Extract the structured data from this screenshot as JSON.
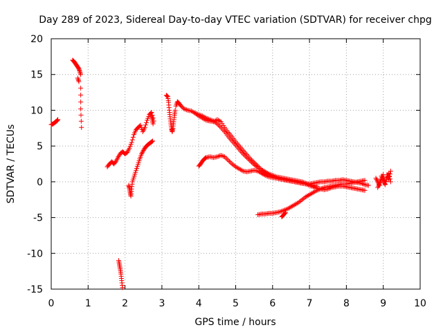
{
  "chart_data": {
    "type": "scatter",
    "title": "Day 289 of 2023, Sidereal Day-to-day VTEC variation (SDTVAR) for receiver chpg",
    "xlabel": "GPS time / hours",
    "ylabel": "SDTVAR / TECUs",
    "xlim": [
      0,
      10
    ],
    "ylim": [
      -15,
      20
    ],
    "x_ticks": [
      0,
      1,
      2,
      3,
      4,
      5,
      6,
      7,
      8,
      9,
      10
    ],
    "y_ticks": [
      -15,
      -10,
      -5,
      0,
      5,
      10,
      15,
      20
    ],
    "x_tick_labels": [
      "0",
      "1",
      "2",
      "3",
      "4",
      "5",
      "6",
      "7",
      "8",
      "9",
      "10"
    ],
    "y_tick_labels": [
      "-15",
      "-10",
      "-5",
      "0",
      "5",
      "10",
      "15",
      "20"
    ],
    "grid": true,
    "marker": "+",
    "color": "#ff0000",
    "segments": [
      {
        "x": [
          0.0,
          0.05,
          0.1,
          0.15,
          0.18
        ],
        "y": [
          8.0,
          8.1,
          8.3,
          8.5,
          8.7
        ]
      },
      {
        "x": [
          0.58,
          0.62,
          0.66,
          0.7,
          0.74,
          0.77,
          0.8
        ],
        "y": [
          17.0,
          16.8,
          16.5,
          16.2,
          15.9,
          15.5,
          15.0
        ]
      },
      {
        "x": [
          0.72,
          0.75
        ],
        "y": [
          14.5,
          14.0
        ]
      },
      {
        "x": [
          0.8,
          0.8,
          0.82
        ],
        "y": [
          13.1,
          10.2,
          7.6
        ]
      },
      {
        "x": [
          1.52,
          1.58,
          1.64,
          1.7,
          1.76,
          1.82,
          1.88,
          1.94,
          2.0,
          2.06,
          2.12,
          2.18,
          2.24,
          2.3,
          2.36,
          2.42,
          2.48,
          2.54,
          2.6,
          2.66,
          2.72,
          2.78
        ],
        "y": [
          2.1,
          2.5,
          2.8,
          2.5,
          2.9,
          3.5,
          4.0,
          4.2,
          3.9,
          4.1,
          4.7,
          5.5,
          6.6,
          7.3,
          7.6,
          7.9,
          7.0,
          7.6,
          8.6,
          9.4,
          9.7,
          8.5
        ]
      },
      {
        "x": [
          2.72,
          2.74,
          2.76
        ],
        "y": [
          9.2,
          8.7,
          8.1
        ]
      },
      {
        "x": [
          2.1,
          2.12,
          2.14,
          2.16,
          2.18,
          2.2,
          2.25,
          2.3,
          2.35,
          2.4,
          2.45,
          2.5,
          2.55,
          2.6,
          2.65,
          2.7,
          2.75
        ],
        "y": [
          -0.5,
          -0.9,
          -1.5,
          -2.0,
          -1.0,
          0.0,
          0.8,
          1.6,
          2.4,
          3.2,
          3.9,
          4.4,
          4.8,
          5.1,
          5.3,
          5.5,
          5.7
        ]
      },
      {
        "x": [
          1.83,
          1.85,
          1.87,
          1.89,
          1.91,
          1.93
        ],
        "y": [
          -11.0,
          -11.6,
          -12.2,
          -12.9,
          -13.8,
          -14.8
        ]
      },
      {
        "x": [
          3.12,
          3.16,
          3.18,
          3.2,
          3.22,
          3.24,
          3.26,
          3.28,
          3.3,
          3.32,
          3.34,
          3.36
        ],
        "y": [
          12.1,
          11.9,
          11.1,
          10.0,
          9.1,
          8.2,
          7.4,
          7.0,
          7.5,
          8.4,
          9.3,
          10.0
        ]
      },
      {
        "x": [
          3.38,
          3.42,
          3.46,
          3.52,
          3.6,
          3.7,
          3.8,
          3.9,
          4.0,
          4.1,
          4.2,
          4.3,
          4.4,
          4.5,
          4.6,
          4.7,
          4.8,
          4.9,
          5.0,
          5.1,
          5.2,
          5.3,
          5.4,
          5.5,
          5.6,
          5.7,
          5.8,
          5.9,
          6.0,
          6.1,
          6.2,
          6.3,
          6.4,
          6.5,
          6.6,
          6.7,
          6.8,
          6.9,
          7.0,
          7.1,
          7.2
        ],
        "y": [
          10.6,
          11.2,
          11.0,
          10.6,
          10.2,
          10.0,
          9.9,
          9.6,
          9.2,
          8.9,
          8.6,
          8.5,
          8.4,
          8.7,
          8.4,
          7.6,
          6.9,
          6.3,
          5.6,
          5.0,
          4.4,
          3.8,
          3.2,
          2.7,
          2.2,
          1.7,
          1.4,
          1.1,
          0.9,
          0.7,
          0.6,
          0.5,
          0.4,
          0.3,
          0.2,
          0.1,
          0.0,
          -0.2,
          -0.4,
          -0.5,
          -0.6
        ]
      },
      {
        "x": [
          3.9,
          4.0,
          4.1,
          4.2,
          4.3,
          4.4,
          4.5,
          4.6,
          4.7,
          4.8,
          4.9,
          5.0,
          5.1,
          5.2,
          5.3,
          5.4,
          5.5,
          5.6,
          5.7,
          5.8,
          5.9,
          6.0,
          6.1,
          6.2,
          6.3,
          6.4,
          6.5,
          6.6,
          6.7,
          6.8,
          6.9,
          7.0,
          7.1,
          7.2,
          7.3,
          7.4,
          7.5,
          7.6,
          7.7,
          7.8,
          7.9,
          8.0,
          8.1,
          8.2,
          8.3,
          8.4,
          8.5,
          8.6
        ],
        "y": [
          9.6,
          9.4,
          9.2,
          8.9,
          8.7,
          8.5,
          8.1,
          7.6,
          7.0,
          6.3,
          5.7,
          5.1,
          4.5,
          3.9,
          3.4,
          2.9,
          2.4,
          2.0,
          1.6,
          1.3,
          1.0,
          0.8,
          0.6,
          0.4,
          0.3,
          0.2,
          0.1,
          0.0,
          -0.1,
          -0.2,
          -0.3,
          -0.3,
          -0.2,
          -0.1,
          0.0,
          0.0,
          0.1,
          0.1,
          0.2,
          0.2,
          0.3,
          0.2,
          0.1,
          0.0,
          -0.1,
          -0.2,
          -0.4,
          -0.5
        ]
      },
      {
        "x": [
          4.0,
          4.05,
          4.1,
          4.15,
          4.2,
          4.3,
          4.4,
          4.5,
          4.6,
          4.7,
          4.8,
          4.9,
          5.0,
          5.1,
          5.2,
          5.3,
          5.4,
          5.5,
          5.6,
          5.7,
          5.8,
          5.9,
          6.0,
          6.1,
          6.2,
          6.3,
          6.4,
          6.5,
          6.6,
          6.7,
          6.8,
          6.9,
          7.0,
          7.1,
          7.2,
          7.3,
          7.4,
          7.5,
          7.6,
          7.7,
          7.8,
          7.9,
          8.0,
          8.1,
          8.2,
          8.3,
          8.4,
          8.5
        ],
        "y": [
          2.2,
          2.5,
          2.9,
          3.2,
          3.4,
          3.5,
          3.4,
          3.5,
          3.7,
          3.5,
          3.0,
          2.5,
          2.1,
          1.8,
          1.5,
          1.4,
          1.5,
          1.6,
          1.5,
          1.2,
          0.9,
          0.7,
          0.6,
          0.5,
          0.4,
          0.3,
          0.2,
          0.1,
          0.0,
          -0.1,
          -0.2,
          -0.3,
          -0.5,
          -0.7,
          -0.9,
          -1.0,
          -1.1,
          -1.0,
          -0.8,
          -0.7,
          -0.6,
          -0.6,
          -0.7,
          -0.8,
          -0.9,
          -1.0,
          -1.1,
          -1.2
        ]
      },
      {
        "x": [
          5.6,
          5.7,
          5.8,
          5.9,
          6.0,
          6.1,
          6.2,
          6.3,
          6.4,
          6.5,
          6.6,
          6.7,
          6.8,
          6.9,
          7.0,
          7.1,
          7.2,
          7.3,
          7.4,
          7.5,
          7.6,
          7.7,
          7.8,
          7.9,
          8.0,
          8.1,
          8.2,
          8.3,
          8.4,
          8.5
        ],
        "y": [
          -4.6,
          -4.5,
          -4.5,
          -4.4,
          -4.4,
          -4.3,
          -4.2,
          -4.0,
          -3.8,
          -3.5,
          -3.2,
          -2.9,
          -2.5,
          -2.1,
          -1.8,
          -1.5,
          -1.2,
          -1.0,
          -0.8,
          -0.7,
          -0.6,
          -0.5,
          -0.4,
          -0.3,
          -0.3,
          -0.2,
          -0.1,
          0.0,
          0.1,
          0.2
        ]
      },
      {
        "x": [
          6.25,
          6.3,
          6.35
        ],
        "y": [
          -4.9,
          -4.6,
          -4.3
        ]
      },
      {
        "x": [
          8.8,
          8.85,
          8.9,
          8.95,
          9.0,
          9.05,
          9.1,
          9.15,
          9.2
        ],
        "y": [
          0.5,
          0.0,
          -0.5,
          0.8,
          0.2,
          -0.4,
          1.0,
          0.3,
          1.5
        ]
      },
      {
        "x": [
          8.85,
          8.9,
          8.95,
          9.0,
          9.05,
          9.1,
          9.15,
          9.2
        ],
        "y": [
          -0.8,
          -0.2,
          0.4,
          1.0,
          -0.3,
          0.6,
          1.2,
          0.0
        ]
      }
    ]
  }
}
